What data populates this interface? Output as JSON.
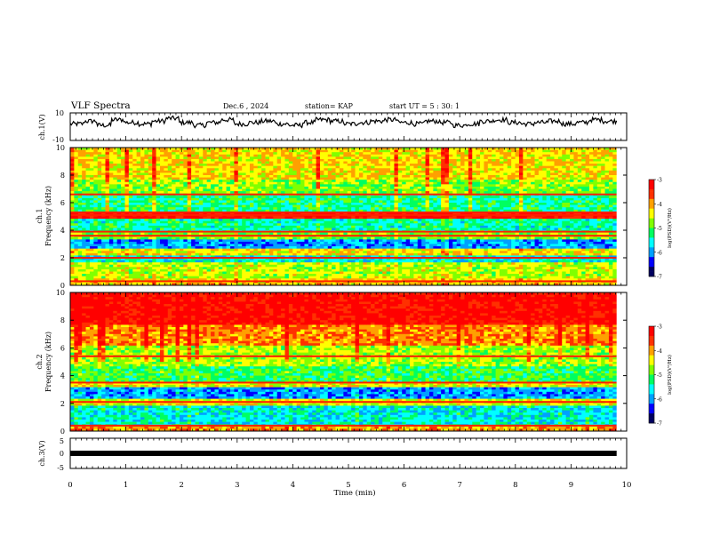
{
  "header": {
    "title": "VLF Spectra",
    "date": "Dec.6 , 2024",
    "station": "station= KAP",
    "start": "start UT = 5 : 30: 1"
  },
  "colors": {
    "axis": "#000000",
    "colormap": [
      "#000060",
      "#0000ff",
      "#00a0ff",
      "#00ffff",
      "#00ff60",
      "#80ff00",
      "#ffff00",
      "#ffa000",
      "#ff3000",
      "#ff0000"
    ],
    "trace": "#000000"
  },
  "chart_data": [
    {
      "type": "line",
      "id": "ch1",
      "ylabel": "ch.1(V)",
      "ylim": [
        -10,
        10
      ],
      "yticks": [
        "10",
        "-10"
      ],
      "x_range_min": [
        0,
        9.82
      ],
      "description_values": "voltage waveform oscillating roughly between -2 and 6 V",
      "y": [
        2,
        4,
        1,
        5,
        3,
        2,
        4,
        6,
        3,
        1,
        3,
        5,
        2,
        3,
        4,
        2,
        1,
        3,
        5,
        4,
        2,
        3,
        4,
        5,
        3,
        2,
        4,
        3,
        1,
        2,
        4,
        5,
        3,
        2,
        3,
        4,
        2,
        3,
        5,
        4
      ]
    },
    {
      "type": "heatmap",
      "id": "ch1-spectrogram",
      "ylabel": "ch.1",
      "ylabel2": "Frequency (kHz)",
      "yticks": [
        "0",
        "2",
        "4",
        "6",
        "8",
        "10"
      ],
      "ylim": [
        0,
        10
      ],
      "colorbar": {
        "label": "log(PSD)(V²/Hz)",
        "ticks": [
          "-3",
          "-4",
          "-5",
          "-6",
          "-7"
        ],
        "range": [
          -7,
          -3
        ]
      },
      "bands": [
        {
          "from": 0,
          "to": 0.5,
          "level": -4.2
        },
        {
          "from": 0.5,
          "to": 1.6,
          "level": -4.6
        },
        {
          "from": 1.6,
          "to": 2.2,
          "level": -5.6
        },
        {
          "from": 2.2,
          "to": 2.6,
          "level": -4.3
        },
        {
          "from": 2.6,
          "to": 3.4,
          "level": -6.0
        },
        {
          "from": 3.4,
          "to": 3.9,
          "level": -4.8
        },
        {
          "from": 3.9,
          "to": 4.9,
          "level": -5.4
        },
        {
          "from": 4.9,
          "to": 5.3,
          "level": -3.3
        },
        {
          "from": 5.3,
          "to": 6.6,
          "level": -5.3
        },
        {
          "from": 6.6,
          "to": 7.6,
          "level": -4.8
        },
        {
          "from": 7.6,
          "to": 10,
          "level": -4.3
        }
      ],
      "lines_khz": [
        0.3,
        2.0,
        3.6,
        3.9,
        5.1,
        5.3,
        6.6
      ]
    },
    {
      "type": "heatmap",
      "id": "ch2-spectrogram",
      "ylabel": "ch.2",
      "ylabel2": "Frequency (kHz)",
      "yticks": [
        "0",
        "2",
        "4",
        "6",
        "8",
        "10"
      ],
      "ylim": [
        0,
        10
      ],
      "colorbar": {
        "label": "log(PSD)(V²/Hz)",
        "ticks": [
          "-3",
          "-4",
          "-5",
          "-6",
          "-7"
        ],
        "range": [
          -7,
          -3
        ]
      },
      "bands": [
        {
          "from": 0,
          "to": 0.4,
          "level": -4.0
        },
        {
          "from": 0.4,
          "to": 1.9,
          "level": -5.6
        },
        {
          "from": 1.9,
          "to": 2.3,
          "level": -4.5
        },
        {
          "from": 2.3,
          "to": 3.1,
          "level": -6.0
        },
        {
          "from": 3.1,
          "to": 3.5,
          "level": -4.4
        },
        {
          "from": 3.5,
          "to": 4.6,
          "level": -5.1
        },
        {
          "from": 4.6,
          "to": 6.2,
          "level": -4.7
        },
        {
          "from": 6.2,
          "to": 7.6,
          "level": -3.9
        },
        {
          "from": 7.6,
          "to": 10,
          "level": -3.2
        }
      ],
      "lines_khz": [
        0.4,
        2.1,
        3.5,
        5.4
      ]
    },
    {
      "type": "line",
      "id": "ch3",
      "ylabel": "ch.3(V)",
      "ylim": [
        -5,
        5
      ],
      "yticks": [
        "5",
        "0",
        "-5"
      ],
      "constant_value": 0
    }
  ],
  "xaxis": {
    "label": "Time (min)",
    "ticks": [
      "0",
      "1",
      "2",
      "3",
      "4",
      "5",
      "6",
      "7",
      "8",
      "9",
      "10"
    ],
    "xlim": [
      0,
      10
    ],
    "data_end": 9.82
  }
}
